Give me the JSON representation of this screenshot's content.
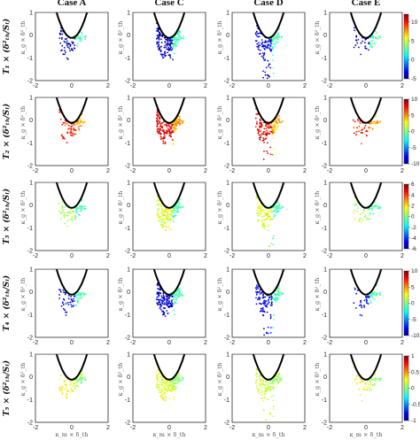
{
  "columns": [
    "Case A",
    "Case C",
    "Case D",
    "Case E"
  ],
  "rows": [
    {
      "label": "T₁ × (δ²ₜₕ/Sₗ)",
      "cbar_ticks": [
        "10",
        "5",
        "0",
        "-5"
      ],
      "cbar_range": [
        -5,
        12
      ]
    },
    {
      "label": "T₂ × (δ²ₜₕ/Sₗ)",
      "cbar_ticks": [
        "10",
        "5",
        "0",
        "-5",
        "-10"
      ],
      "cbar_range": [
        -10,
        10
      ]
    },
    {
      "label": "T₃ × (δ²ₜₕ/Sₗ)",
      "cbar_ticks": [
        "6",
        "4",
        "2",
        "0",
        "-2",
        "-4",
        "-6"
      ],
      "cbar_range": [
        -6,
        6
      ]
    },
    {
      "label": "T₄ × (δ²ₜₕ/Sₗ)",
      "cbar_ticks": [
        "10",
        "5",
        "0",
        "-5",
        "-10"
      ],
      "cbar_range": [
        -10,
        10
      ]
    },
    {
      "label": "T₅ × (δ²ₜₕ/Sₗ)",
      "cbar_ticks": [
        "1",
        "0.5",
        "0",
        "-0.5",
        "-1"
      ],
      "cbar_range": [
        -1,
        1
      ]
    }
  ],
  "yticks": [
    "1",
    "0",
    "-1",
    "-2"
  ],
  "xticks": [
    "-2",
    "0",
    "2"
  ],
  "ylabel": "κ_g × δ²_th",
  "xlabel": "κ_m × δ_th",
  "chart_data": {
    "type": "scatter",
    "title": "",
    "columns": [
      "Case A",
      "Case C",
      "Case D",
      "Case E"
    ],
    "x_range": [
      -2,
      2
    ],
    "y_range": [
      -2,
      1
    ],
    "xticks": [
      -2,
      0,
      2
    ],
    "yticks": [
      1,
      0,
      -1,
      -2
    ],
    "curve": "parabola bounding the scatter, vertex near (0, -0.1)",
    "panels_per_row_colorbar_ranges": [
      [
        -5,
        12
      ],
      [
        -10,
        10
      ],
      [
        -6,
        6
      ],
      [
        -10,
        10
      ],
      [
        -1,
        1
      ]
    ],
    "grid": false,
    "colormap": "jet"
  }
}
